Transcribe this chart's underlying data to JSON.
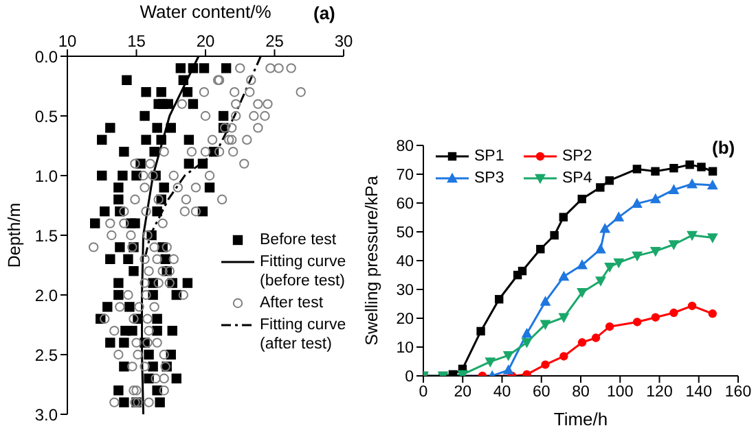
{
  "chart_data": [
    {
      "type": "scatter",
      "title": "(a)",
      "xlabel": "Water content/%",
      "ylabel": "Depth/m",
      "xlim": [
        10,
        30
      ],
      "xticks": [
        10,
        15,
        20,
        25,
        30
      ],
      "ylim": [
        3.0,
        0.0
      ],
      "yticks": [
        {
          "value": 0,
          "label": "0.0"
        },
        {
          "value": 0.5,
          "label": "0.5"
        },
        {
          "value": 1,
          "label": "1.0"
        },
        {
          "value": 1.5,
          "label": "1.5"
        },
        {
          "value": 2,
          "label": "2.0"
        },
        {
          "value": 2.5,
          "label": "2.5"
        },
        {
          "value": 3,
          "label": "3.0"
        }
      ],
      "legend": "right",
      "series": [
        {
          "name": "Before test",
          "color": "#000000",
          "marker": "square",
          "x": [
            18.2,
            19.1,
            19.9,
            21.5,
            14.3,
            18.4,
            15.7,
            16.8,
            18.7,
            16.6,
            16.9,
            17.3,
            19.1,
            15.6,
            21.3,
            13.1,
            16.5,
            17.5,
            21.3,
            12.5,
            15.7,
            16.8,
            18.8,
            14.1,
            16.3,
            20.6,
            15.3,
            18.8,
            19.8,
            12.5,
            14.0,
            15.0,
            16.4,
            13.7,
            17.0,
            20.3,
            13.7,
            16.8,
            12.7,
            13.8,
            16.5,
            19.8,
            12.0,
            14.6,
            14.9,
            16.1,
            13.8,
            14.8,
            16.9,
            13.1,
            14.4,
            17.1,
            14.8,
            17.2,
            13.7,
            16.2,
            17.6,
            18.7,
            13.7,
            16.2,
            17.9,
            12.9,
            14.5,
            12.4,
            15.1,
            16.5,
            14.2,
            14.7,
            16.5,
            17.6,
            13.1,
            14.1,
            15.6,
            15.9,
            17.5,
            14.1,
            16.2,
            17.2,
            15.9,
            17.9,
            13.7,
            16.5,
            14.1,
            15.0,
            16.7
          ],
          "values": [
            0.1,
            0.1,
            0.1,
            0.1,
            0.2,
            0.2,
            0.3,
            0.3,
            0.3,
            0.4,
            0.4,
            0.4,
            0.4,
            0.5,
            0.5,
            0.6,
            0.6,
            0.6,
            0.6,
            0.7,
            0.7,
            0.7,
            0.7,
            0.8,
            0.8,
            0.8,
            0.9,
            0.9,
            0.9,
            1.0,
            1.0,
            1.0,
            1.0,
            1.1,
            1.1,
            1.1,
            1.2,
            1.2,
            1.3,
            1.3,
            1.3,
            1.3,
            1.4,
            1.4,
            1.4,
            1.5,
            1.6,
            1.6,
            1.6,
            1.7,
            1.7,
            1.7,
            1.8,
            1.8,
            1.9,
            1.9,
            1.9,
            1.9,
            2.0,
            2.0,
            2.0,
            2.1,
            2.1,
            2.2,
            2.2,
            2.2,
            2.3,
            2.3,
            2.3,
            2.3,
            2.4,
            2.4,
            2.4,
            2.5,
            2.5,
            2.6,
            2.6,
            2.6,
            2.7,
            2.7,
            2.8,
            2.8,
            2.9,
            2.9,
            2.9
          ]
        },
        {
          "name": "Fitting curve (before test)",
          "type": "line",
          "color": "#000000",
          "line_style": "solid",
          "marker": "none",
          "x": [
            19.5,
            17.4,
            16.2,
            15.5,
            15.4,
            15.4,
            15.5
          ],
          "values": [
            0,
            0.5,
            1.0,
            1.5,
            2.0,
            2.5,
            3.0
          ]
        },
        {
          "name": "After test",
          "color": "#808080",
          "marker": "circle",
          "x": [
            22.5,
            24.7,
            25.3,
            26.2,
            20.9,
            21.0,
            23.3,
            19.9,
            22.1,
            23.2,
            26.9,
            18.3,
            22.2,
            23.8,
            24.5,
            20.0,
            22.2,
            23.5,
            24.3,
            21.4,
            21.9,
            23.8,
            20.5,
            21.7,
            21.9,
            23.0,
            17.0,
            19.0,
            20.0,
            21.0,
            22.0,
            14.9,
            16.0,
            22.8,
            15.5,
            16.2,
            17.7,
            20.3,
            15.6,
            18.0,
            19.3,
            14.9,
            16.6,
            18.6,
            21.2,
            14.1,
            15.7,
            18.5,
            19.3,
            13.1,
            14.1,
            16.9,
            13.2,
            14.6,
            15.8,
            11.9,
            14.7,
            16.3,
            17.2,
            15.6,
            16.5,
            17.7,
            15.9,
            16.9,
            17.4,
            15.6,
            16.6,
            17.4,
            14.4,
            15.7,
            18.4,
            13.8,
            15.2,
            16.3,
            12.7,
            14.8,
            15.8,
            13.4,
            15.9,
            15.0,
            15.8,
            16.5,
            13.7,
            15.1,
            17.0,
            14.7,
            15.6,
            17.1,
            16.4,
            17.0,
            14.8,
            15.0,
            17.0,
            13.4,
            14.9,
            15.1,
            15.9
          ],
          "values": [
            0.1,
            0.1,
            0.1,
            0.1,
            0.2,
            0.2,
            0.2,
            0.3,
            0.3,
            0.3,
            0.3,
            0.4,
            0.4,
            0.4,
            0.4,
            0.5,
            0.5,
            0.5,
            0.5,
            0.6,
            0.6,
            0.6,
            0.7,
            0.7,
            0.7,
            0.7,
            0.8,
            0.8,
            0.8,
            0.8,
            0.8,
            0.9,
            0.9,
            0.9,
            1.0,
            1.0,
            1.0,
            1.0,
            1.1,
            1.1,
            1.1,
            1.2,
            1.2,
            1.2,
            1.2,
            1.3,
            1.3,
            1.3,
            1.3,
            1.4,
            1.4,
            1.4,
            1.5,
            1.5,
            1.5,
            1.6,
            1.6,
            1.6,
            1.6,
            1.7,
            1.7,
            1.7,
            1.8,
            1.8,
            1.8,
            1.9,
            1.9,
            1.9,
            2.0,
            2.0,
            2.0,
            2.1,
            2.1,
            2.1,
            2.2,
            2.2,
            2.2,
            2.3,
            2.3,
            2.4,
            2.4,
            2.4,
            2.5,
            2.5,
            2.5,
            2.6,
            2.6,
            2.6,
            2.7,
            2.7,
            2.8,
            2.8,
            2.8,
            2.9,
            2.9,
            2.9,
            2.9
          ]
        },
        {
          "name": "Fitting curve (after test)",
          "type": "line",
          "color": "#000000",
          "line_style": "dashed",
          "marker": "none",
          "x": [
            24.0,
            22.1,
            20.8,
            18.5,
            17.3,
            16.0,
            15.6
          ],
          "values": [
            0,
            0.5,
            0.8,
            1.0,
            1.2,
            1.5,
            1.7
          ]
        }
      ]
    },
    {
      "type": "line",
      "title": "(b)",
      "xlabel": "Time/h",
      "ylabel": "Swelling pressure/kPa",
      "xlim": [
        0,
        160
      ],
      "xticks": [
        0,
        20,
        40,
        60,
        80,
        100,
        120,
        140,
        160
      ],
      "ylim": [
        0,
        80
      ],
      "yticks": [
        0,
        10,
        20,
        30,
        40,
        50,
        60,
        70,
        80
      ],
      "legend": "top left",
      "line_style": "solid",
      "series": [
        {
          "name": "SP1",
          "color": "#000000",
          "marker": "square",
          "x": [
            0,
            10,
            15,
            19.9,
            29.2,
            38.5,
            47.9,
            50.3,
            59.5,
            66.6,
            71.2,
            80.6,
            89.9,
            94.6,
            108.6,
            117.9,
            127.3,
            135.4,
            141.3,
            147.1
          ],
          "values": [
            0,
            0,
            0.5,
            2.4,
            15.5,
            26.6,
            35.0,
            36.4,
            44.0,
            48.8,
            55.1,
            61.4,
            65.4,
            67.8,
            71.8,
            71.0,
            72.1,
            73.3,
            72.5,
            71.0
          ]
        },
        {
          "name": "SP2",
          "color": "#ff0000",
          "marker": "circle",
          "x": [
            0,
            30,
            45,
            52.6,
            62,
            71.4,
            80.7,
            87.7,
            94.7,
            108.7,
            118,
            127.3,
            136.6,
            147
          ],
          "values": [
            0,
            0,
            0,
            0.5,
            3.9,
            6.8,
            11.6,
            13.2,
            17.1,
            18.7,
            20.3,
            21.9,
            24.3,
            21.6
          ]
        },
        {
          "name": "SP3",
          "color": "#1f77e0",
          "marker": "triangle",
          "x": [
            0,
            20,
            35,
            43.2,
            52.6,
            62,
            71.4,
            80.7,
            90.1,
            92.3,
            99.3,
            108.6,
            118,
            127.3,
            136.6,
            147
          ],
          "values": [
            0,
            0,
            0,
            2.0,
            14.7,
            25.8,
            34.5,
            38.5,
            44.0,
            51.1,
            55.1,
            59.8,
            61.4,
            64.6,
            66.6,
            66.2
          ]
        },
        {
          "name": "SP4",
          "color": "#1aa86a",
          "marker": "triangle-down",
          "x": [
            0,
            10,
            20,
            34,
            43.2,
            52.6,
            62,
            71.4,
            80.7,
            90.1,
            94.7,
            99.3,
            108.7,
            118,
            127.3,
            136.6,
            147
          ],
          "values": [
            0,
            0,
            0.5,
            4.9,
            7.1,
            11.6,
            17.9,
            20.3,
            29.0,
            33.0,
            37.8,
            39.3,
            41.7,
            43.3,
            45.6,
            48.8,
            48.0
          ]
        }
      ]
    }
  ]
}
